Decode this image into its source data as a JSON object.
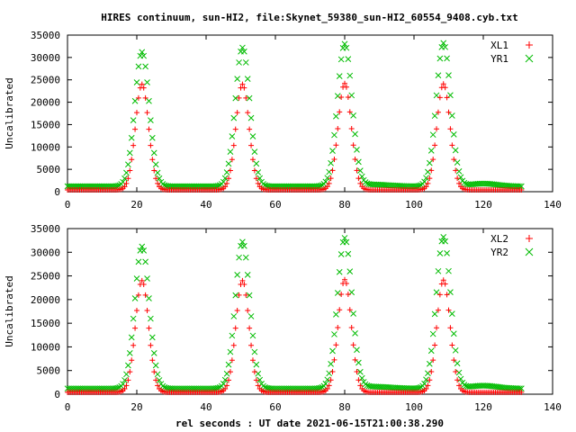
{
  "figure_title": "HIRES continuum, sun-HI2, file:Skynet_59380_sun-HI2_60554_9408.cyb.txt",
  "colors": {
    "xl": "#ff0000",
    "yr": "#00bb00",
    "axis": "#000000"
  },
  "chart_data": [
    {
      "type": "scatter",
      "title": "HIRES continuum, sun-HI2, file:Skynet_59380_sun-HI2_60554_9408.cyb.txt",
      "xlabel": "",
      "ylabel": "Uncalibrated",
      "xlim": [
        0,
        140
      ],
      "ylim": [
        0,
        35000
      ],
      "xticks": [
        "0",
        "20",
        "40",
        "60",
        "80",
        "100",
        "120",
        "140"
      ],
      "yticks": [
        "0",
        "5000",
        "10000",
        "15000",
        "20000",
        "25000",
        "30000",
        "35000"
      ],
      "legend_position": "top-right",
      "x_range_of_samples": [
        0,
        131
      ],
      "sample_step": 0.5,
      "series": [
        {
          "name": "XL1",
          "marker": "plus",
          "color": "#ff0000",
          "baseline": 400,
          "peaks": [
            {
              "center": 21.5,
              "height": 23600,
              "width": 1.9
            },
            {
              "center": 50.5,
              "height": 23600,
              "width": 1.9
            },
            {
              "center": 80.0,
              "height": 23800,
              "width": 1.9
            },
            {
              "center": 108.5,
              "height": 23700,
              "width": 1.9
            }
          ]
        },
        {
          "name": "YR1",
          "marker": "cross",
          "color": "#00bb00",
          "baseline": 1200,
          "peaks": [
            {
              "center": 21.5,
              "height": 30000,
              "width": 2.1
            },
            {
              "center": 50.5,
              "height": 31000,
              "width": 2.1
            },
            {
              "center": 80.0,
              "height": 31700,
              "width": 2.1
            },
            {
              "center": 108.5,
              "height": 32000,
              "width": 2.1
            },
            {
              "center": 88.0,
              "height": 400,
              "width": 5
            },
            {
              "center": 120.0,
              "height": 600,
              "width": 4
            }
          ]
        }
      ]
    },
    {
      "type": "scatter",
      "title": "",
      "xlabel": "rel seconds : UT date 2021-06-15T21:00:38.290",
      "ylabel": "Uncalibrated",
      "xlim": [
        0,
        140
      ],
      "ylim": [
        0,
        35000
      ],
      "xticks": [
        "0",
        "20",
        "40",
        "60",
        "80",
        "100",
        "120",
        "140"
      ],
      "yticks": [
        "0",
        "5000",
        "10000",
        "15000",
        "20000",
        "25000",
        "30000",
        "35000"
      ],
      "legend_position": "top-right",
      "x_range_of_samples": [
        0,
        131
      ],
      "sample_step": 0.5,
      "series": [
        {
          "name": "XL2",
          "marker": "plus",
          "color": "#ff0000",
          "baseline": 400,
          "peaks": [
            {
              "center": 21.5,
              "height": 23600,
              "width": 1.9
            },
            {
              "center": 50.5,
              "height": 23600,
              "width": 1.9
            },
            {
              "center": 80.0,
              "height": 23800,
              "width": 1.9
            },
            {
              "center": 108.5,
              "height": 23700,
              "width": 1.9
            }
          ]
        },
        {
          "name": "YR2",
          "marker": "cross",
          "color": "#00bb00",
          "baseline": 1200,
          "peaks": [
            {
              "center": 21.5,
              "height": 30000,
              "width": 2.1
            },
            {
              "center": 50.5,
              "height": 31000,
              "width": 2.1
            },
            {
              "center": 80.0,
              "height": 31700,
              "width": 2.1
            },
            {
              "center": 108.5,
              "height": 32000,
              "width": 2.1
            },
            {
              "center": 88.0,
              "height": 400,
              "width": 5
            },
            {
              "center": 120.0,
              "height": 600,
              "width": 4
            }
          ]
        }
      ]
    }
  ]
}
